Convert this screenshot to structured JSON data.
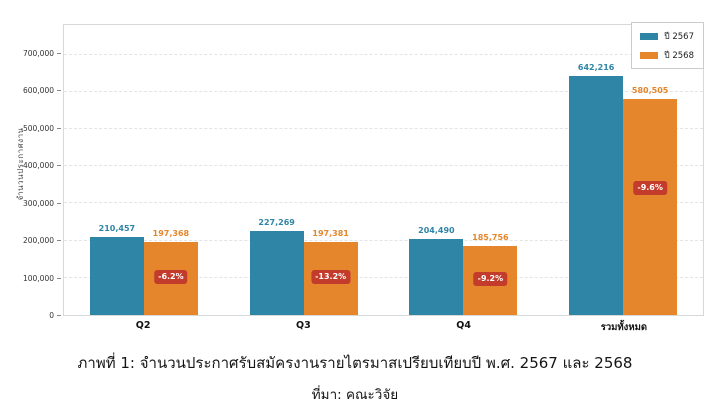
{
  "chart_data": {
    "type": "bar",
    "categories": [
      "Q2",
      "Q3",
      "Q4",
      "รวมทั้งหมด"
    ],
    "series": [
      {
        "name": "ปี 2567",
        "color": "#2f85a6",
        "values": [
          210457,
          227269,
          204490,
          642216
        ],
        "labels": [
          "210,457",
          "227,269",
          "204,490",
          "642,216"
        ]
      },
      {
        "name": "ปี 2568",
        "color": "#e6862c",
        "values": [
          197368,
          197381,
          185756,
          580505
        ],
        "labels": [
          "197,368",
          "197,381",
          "185,756",
          "580,505"
        ]
      }
    ],
    "pct_change": [
      "-6.2%",
      "-13.2%",
      "-9.2%",
      "-9.6%"
    ],
    "pct_badge_color": "#c23b2b",
    "title": "",
    "xlabel": "",
    "ylabel": "จำนวนประกาศงาน",
    "yticks": [
      0,
      100000,
      200000,
      300000,
      400000,
      500000,
      600000,
      700000
    ],
    "ytick_labels": [
      "0",
      "100,000",
      "200,000",
      "300,000",
      "400,000",
      "500,000",
      "600,000",
      "700,000"
    ],
    "ylim": [
      0,
      780000
    ],
    "grid": "horizontal dashed",
    "legend_position": "top-right"
  },
  "caption": {
    "title": "ภาพที่ 1: จำนวนประกาศรับสมัครงานรายไตรมาสเปรียบเทียบปี พ.ศ. 2567 และ 2568",
    "source": "ที่มา: คณะวิจัย"
  }
}
